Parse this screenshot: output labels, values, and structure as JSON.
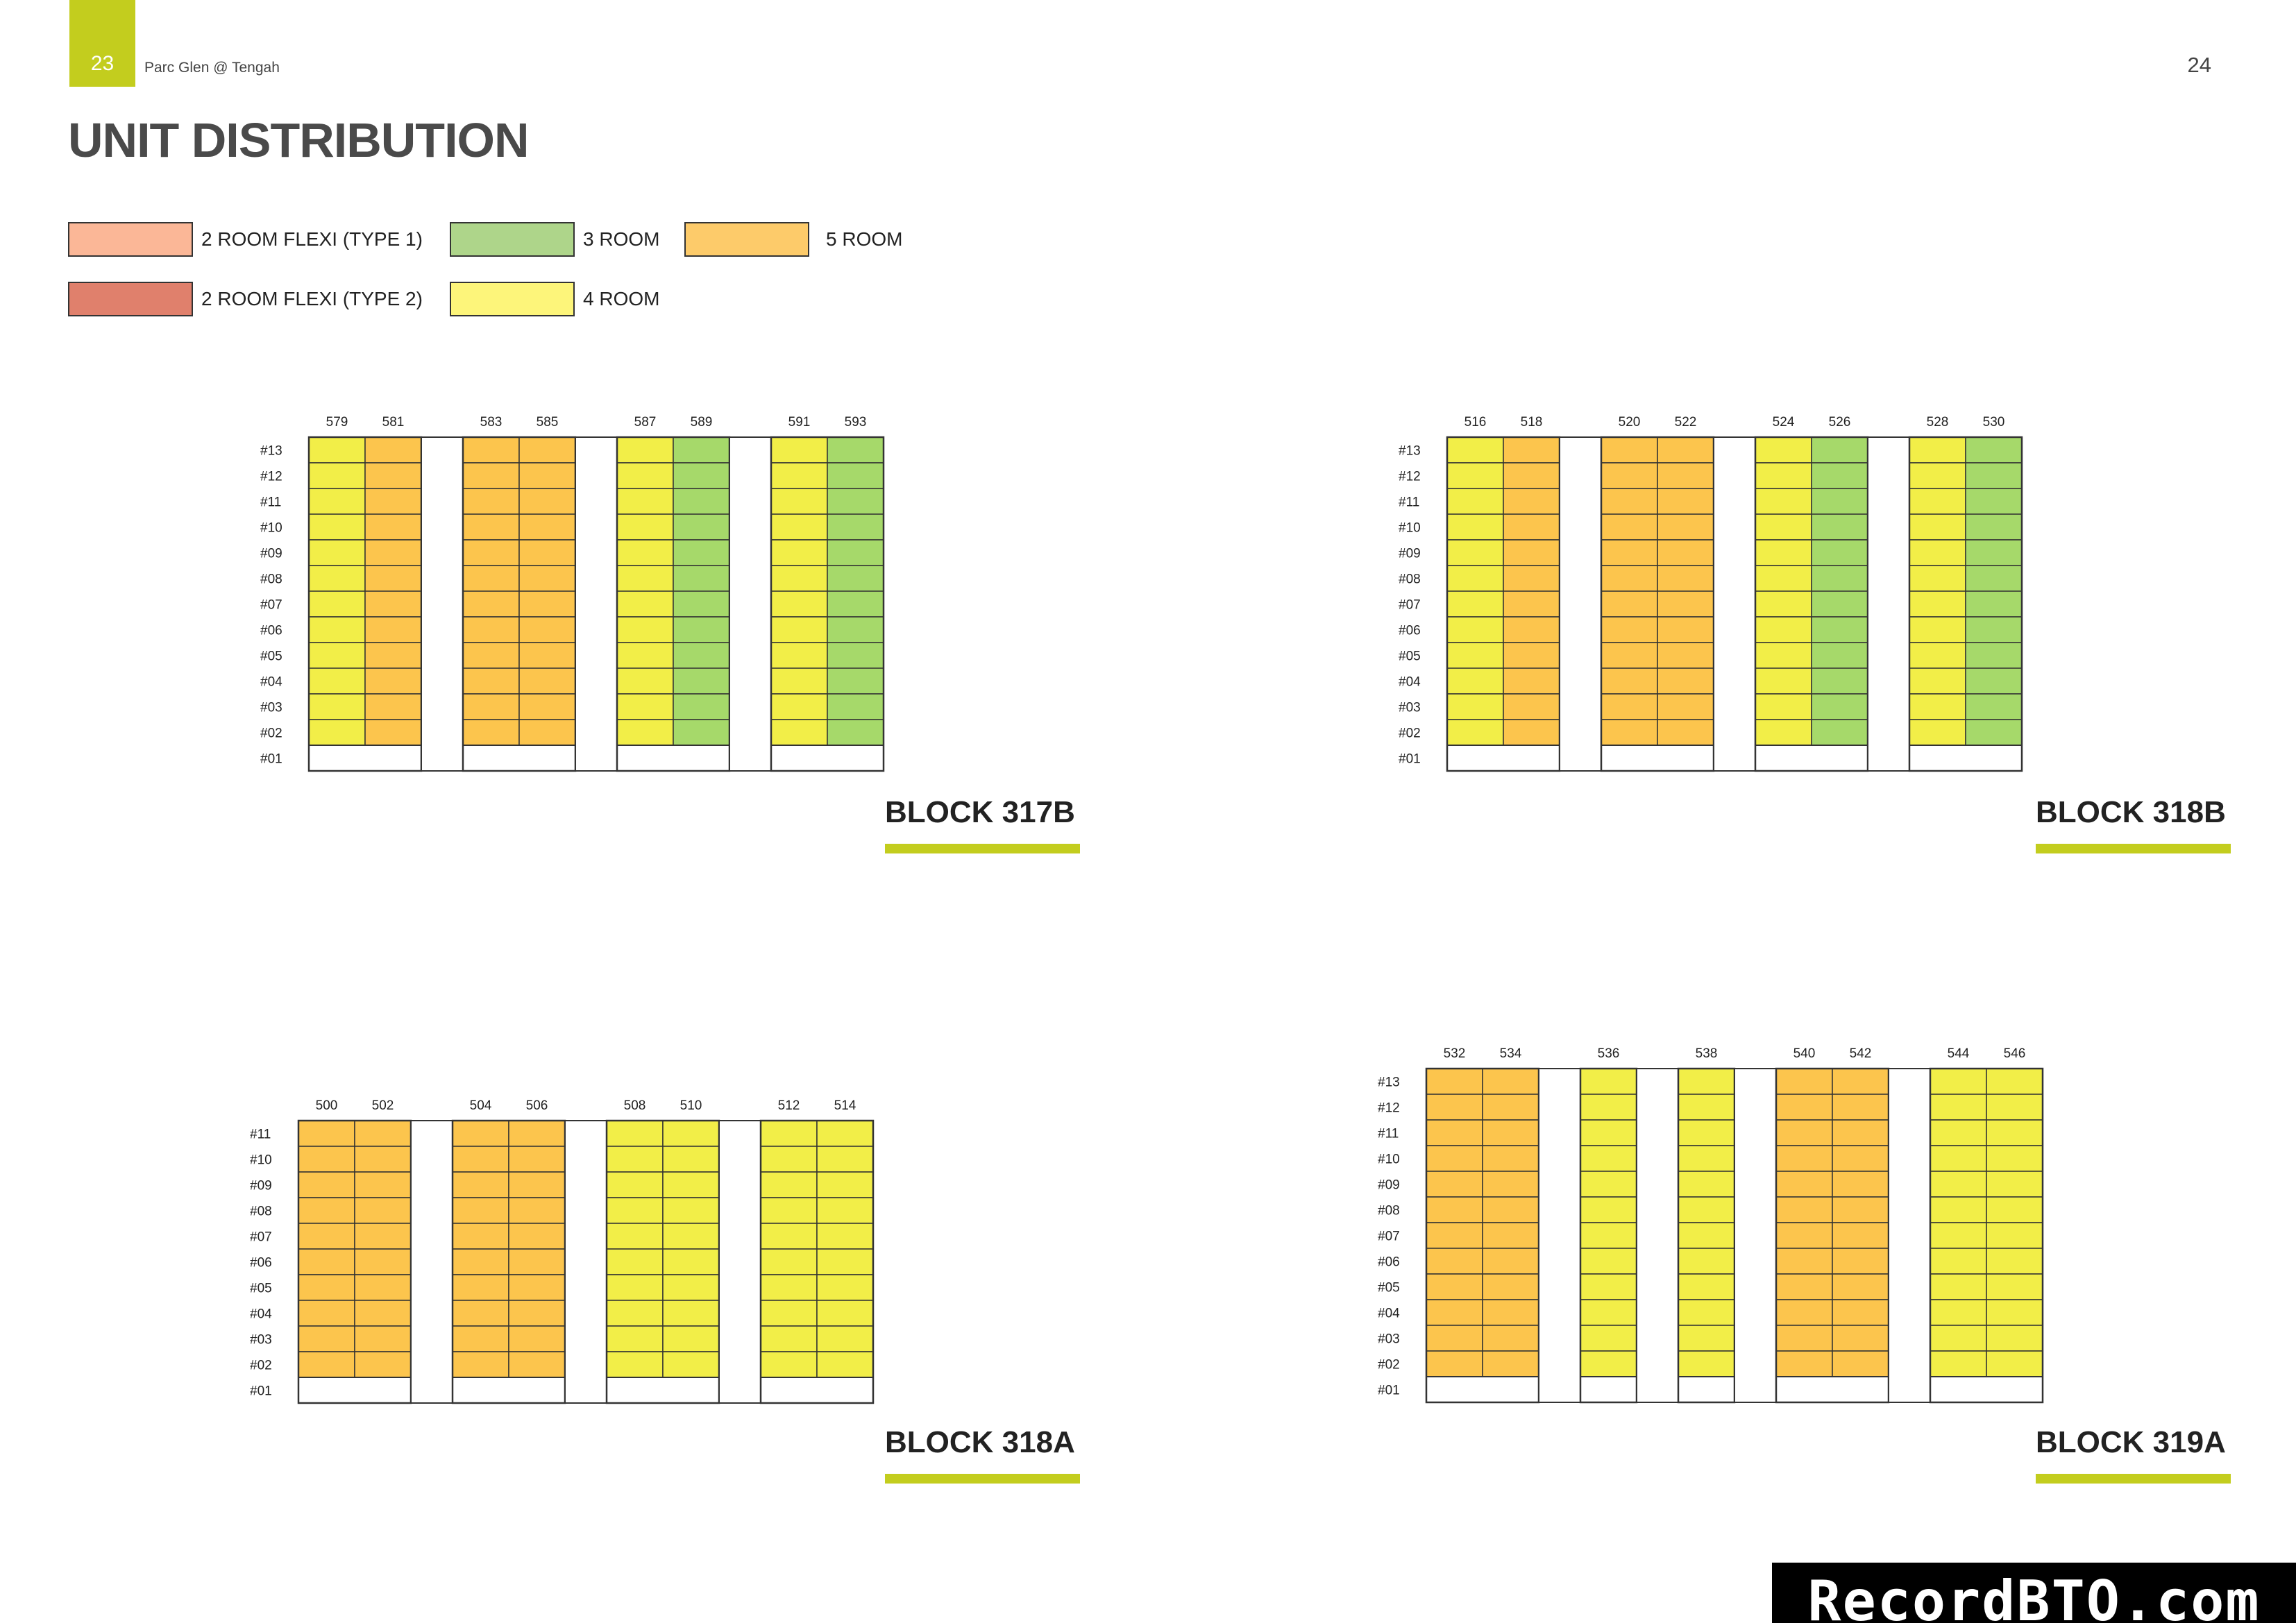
{
  "header": {
    "left_page_number": "23",
    "project_name": "Parc Glen @ Tengah",
    "right_page_number": "24",
    "title": "UNIT DISTRIBUTION"
  },
  "colors": {
    "accent": "#c3cd1e",
    "two_room_flexi_type1": "#fbb797",
    "two_room_flexi_type2": "#e0806c",
    "three_room": "#a6d96a",
    "four_room": "#f2ee48",
    "five_room": "#fcc54d",
    "empty": "#ffffff"
  },
  "legend": [
    {
      "label": "2 ROOM FLEXI (TYPE 1)",
      "color": "#fbb797"
    },
    {
      "label": "2 ROOM FLEXI (TYPE 2)",
      "color": "#e0806c"
    },
    {
      "label": "3 ROOM",
      "color": "#aed58a"
    },
    {
      "label": "4 ROOM",
      "color": "#fdf57a"
    },
    {
      "label": "5 ROOM",
      "color": "#fdcb6a"
    }
  ],
  "blocks": [
    {
      "name": "BLOCK 317B",
      "floors": [
        "#13",
        "#12",
        "#11",
        "#10",
        "#09",
        "#08",
        "#07",
        "#06",
        "#05",
        "#04",
        "#03",
        "#02",
        "#01"
      ],
      "groups": [
        {
          "units": [
            {
              "number": "579",
              "type": "4 ROOM"
            },
            {
              "number": "581",
              "type": "5 ROOM"
            }
          ]
        },
        {
          "units": [
            {
              "number": "583",
              "type": "5 ROOM"
            },
            {
              "number": "585",
              "type": "5 ROOM"
            }
          ]
        },
        {
          "units": [
            {
              "number": "587",
              "type": "4 ROOM"
            },
            {
              "number": "589",
              "type": "3 ROOM"
            }
          ]
        },
        {
          "units": [
            {
              "number": "591",
              "type": "4 ROOM"
            },
            {
              "number": "593",
              "type": "3 ROOM"
            }
          ]
        }
      ]
    },
    {
      "name": "BLOCK 318B",
      "floors": [
        "#13",
        "#12",
        "#11",
        "#10",
        "#09",
        "#08",
        "#07",
        "#06",
        "#05",
        "#04",
        "#03",
        "#02",
        "#01"
      ],
      "groups": [
        {
          "units": [
            {
              "number": "516",
              "type": "4 ROOM"
            },
            {
              "number": "518",
              "type": "5 ROOM"
            }
          ]
        },
        {
          "units": [
            {
              "number": "520",
              "type": "5 ROOM"
            },
            {
              "number": "522",
              "type": "5 ROOM"
            }
          ]
        },
        {
          "units": [
            {
              "number": "524",
              "type": "4 ROOM"
            },
            {
              "number": "526",
              "type": "3 ROOM"
            }
          ]
        },
        {
          "units": [
            {
              "number": "528",
              "type": "4 ROOM"
            },
            {
              "number": "530",
              "type": "3 ROOM"
            }
          ]
        }
      ]
    },
    {
      "name": "BLOCK 318A",
      "floors": [
        "#11",
        "#10",
        "#09",
        "#08",
        "#07",
        "#06",
        "#05",
        "#04",
        "#03",
        "#02",
        "#01"
      ],
      "groups": [
        {
          "units": [
            {
              "number": "500",
              "type": "5 ROOM"
            },
            {
              "number": "502",
              "type": "5 ROOM"
            }
          ]
        },
        {
          "units": [
            {
              "number": "504",
              "type": "5 ROOM"
            },
            {
              "number": "506",
              "type": "5 ROOM"
            }
          ]
        },
        {
          "units": [
            {
              "number": "508",
              "type": "4 ROOM"
            },
            {
              "number": "510",
              "type": "4 ROOM"
            }
          ]
        },
        {
          "units": [
            {
              "number": "512",
              "type": "4 ROOM"
            },
            {
              "number": "514",
              "type": "4 ROOM"
            }
          ]
        }
      ]
    },
    {
      "name": "BLOCK 319A",
      "floors": [
        "#13",
        "#12",
        "#11",
        "#10",
        "#09",
        "#08",
        "#07",
        "#06",
        "#05",
        "#04",
        "#03",
        "#02",
        "#01"
      ],
      "groups": [
        {
          "units": [
            {
              "number": "532",
              "type": "5 ROOM"
            },
            {
              "number": "534",
              "type": "5 ROOM"
            }
          ]
        },
        {
          "units": [
            {
              "number": "536",
              "type": "4 ROOM"
            }
          ]
        },
        {
          "units": [
            {
              "number": "538",
              "type": "4 ROOM"
            }
          ]
        },
        {
          "units": [
            {
              "number": "540",
              "type": "5 ROOM"
            },
            {
              "number": "542",
              "type": "5 ROOM"
            }
          ]
        },
        {
          "units": [
            {
              "number": "544",
              "type": "4 ROOM"
            },
            {
              "number": "546",
              "type": "4 ROOM"
            }
          ]
        }
      ]
    }
  ],
  "watermark": "RecordBTO.com"
}
